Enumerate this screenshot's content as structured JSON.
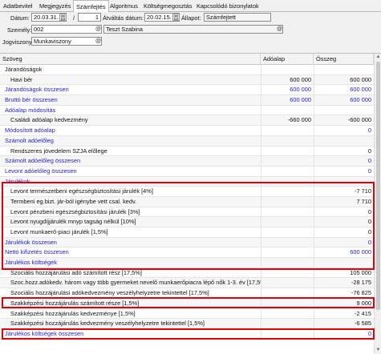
{
  "tabs": [
    {
      "label": "Adatbevitel",
      "active": false
    },
    {
      "label": "Megjegyzés",
      "active": false
    },
    {
      "label": "Számfejtés",
      "active": true
    },
    {
      "label": "Algoritmus",
      "active": false
    },
    {
      "label": "Költségmegosztás",
      "active": false
    },
    {
      "label": "Kapcsolódó bizonylatok",
      "active": false
    }
  ],
  "form": {
    "datum_label": "Dátum:",
    "datum_value": "20.03.31.",
    "separator": "/",
    "sorszam_value": "1",
    "atvaltas_label": "Átváltás dátum:",
    "atvaltas_value": "20.02.15.",
    "allapot_label": "Állapot:",
    "allapot_value": "Számfejtett",
    "szemely_label": "Személy:",
    "szemely_code": "002",
    "szemely_name": "Teszt Szabina",
    "jogviszony_label": "Jogviszony:",
    "jogviszony_value": "Munkaviszony",
    "at_symbol": "@"
  },
  "grid": {
    "headers": {
      "szoveg": "Szöveg",
      "adoalap": "Adóalap",
      "osszeg": "Összeg"
    },
    "rows": [
      {
        "text": "Járandóságok",
        "adoalap": "",
        "osszeg": "",
        "indent": 1,
        "blue": false
      },
      {
        "text": "Havi bér",
        "adoalap": "600 000",
        "osszeg": "600 000",
        "indent": 2,
        "blue": false
      },
      {
        "text": "Járandóságok összesen",
        "adoalap": "600 000",
        "osszeg": "600 000",
        "indent": 1,
        "blue": true
      },
      {
        "text": "Bruttó bér összesen",
        "adoalap": "600 000",
        "osszeg": "600 000",
        "indent": 1,
        "blue": true
      },
      {
        "text": "Adóalap módosítás",
        "adoalap": "",
        "osszeg": "",
        "indent": 1,
        "blue": true
      },
      {
        "text": "Családi adóalap kedvezmény",
        "adoalap": "-660 000",
        "osszeg": "-600 000",
        "indent": 2,
        "blue": false
      },
      {
        "text": "Módosított adóalap",
        "adoalap": "",
        "osszeg": "0",
        "indent": 1,
        "blue": true
      },
      {
        "text": "Számolt adóelőleg",
        "adoalap": "",
        "osszeg": "",
        "indent": 1,
        "blue": true
      },
      {
        "text": "Rendszeres jövedelem SZJA előlege",
        "adoalap": "",
        "osszeg": "0",
        "indent": 2,
        "blue": false
      },
      {
        "text": "Számolt adóelőleg összesen",
        "adoalap": "",
        "osszeg": "0",
        "indent": 1,
        "blue": true
      },
      {
        "text": "Levont adóelőleg összesen",
        "adoalap": "",
        "osszeg": "0",
        "indent": 1,
        "blue": true
      },
      {
        "text": "Járulékok",
        "adoalap": "",
        "osszeg": "",
        "indent": 1,
        "blue": true
      },
      {
        "text": "Levont természetbeni egészségbiztosítási járulék [4%]",
        "adoalap": "",
        "osszeg": "-7 710",
        "indent": 2,
        "blue": false
      },
      {
        "text": "Termbeni eg.bizt. jár-ból igénybe vett csal. kedv.",
        "adoalap": "",
        "osszeg": "7 710",
        "indent": 2,
        "blue": false
      },
      {
        "text": "Levont pénzbeni egészségbiztosítási járulék [3%]",
        "adoalap": "",
        "osszeg": "0",
        "indent": 2,
        "blue": false
      },
      {
        "text": "Levont nyugdíjjárulék mnyp tagság nélkül [10%]",
        "adoalap": "",
        "osszeg": "0",
        "indent": 2,
        "blue": false
      },
      {
        "text": "Levont munkaerő-piaci járulék [1,5%]",
        "adoalap": "",
        "osszeg": "0",
        "indent": 2,
        "blue": false
      },
      {
        "text": "Járulékok összesen",
        "adoalap": "",
        "osszeg": "0",
        "indent": 1,
        "blue": true
      },
      {
        "text": "Nettó kifizetés összesen",
        "adoalap": "",
        "osszeg": "600 000",
        "indent": 1,
        "blue": true
      },
      {
        "text": "Járulékos költségek",
        "adoalap": "",
        "osszeg": "",
        "indent": 1,
        "blue": true
      },
      {
        "text": "Szociális hozzájárulási adó számított rész [17,5%]",
        "adoalap": "",
        "osszeg": "105 000",
        "indent": 2,
        "blue": false
      },
      {
        "text": "Szoc.hozz.adókedv. három vagy több gyermeket nevelő munkaerőpiacra lépő nők 1-3. év [17,5%]",
        "adoalap": "",
        "osszeg": "-28 175",
        "indent": 2,
        "blue": false
      },
      {
        "text": "Szociális hozzájárulási adókedvezmény veszélyhelyzetre tekintettel [17,5%]",
        "adoalap": "",
        "osszeg": "-76 825",
        "indent": 2,
        "blue": false
      },
      {
        "text": "Szakképzési hozzájárulás számított része [1,5%]",
        "adoalap": "",
        "osszeg": "9 000",
        "indent": 2,
        "blue": false
      },
      {
        "text": "Szakképzési hozzájárulás kedvezménye [1,5%]",
        "adoalap": "",
        "osszeg": "-2 415",
        "indent": 2,
        "blue": false
      },
      {
        "text": "Szakképzési hozzájárulás kedvezmény veszélyhelyzetre tekintettel [1,5%]",
        "adoalap": "",
        "osszeg": "-6 585",
        "indent": 2,
        "blue": false
      },
      {
        "text": "Járulékos költségek összesen",
        "adoalap": "",
        "osszeg": "0",
        "indent": 1,
        "blue": true
      }
    ]
  },
  "colors": {
    "highlight": "#e0000d",
    "link_blue": "#1e1ec8"
  }
}
